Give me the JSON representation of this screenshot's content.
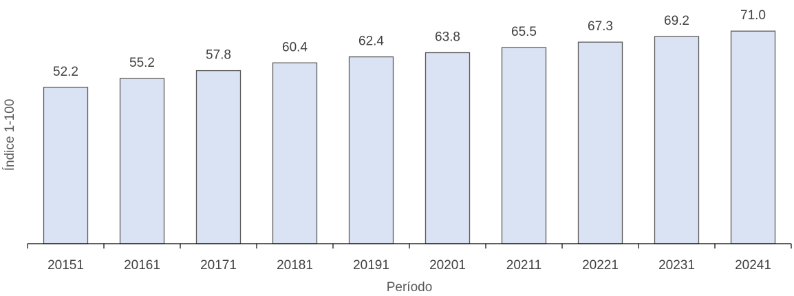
{
  "chart_data": {
    "type": "bar",
    "categories": [
      "20151",
      "20161",
      "20171",
      "20181",
      "20191",
      "20201",
      "20211",
      "20221",
      "20231",
      "20241"
    ],
    "values": [
      52.2,
      55.2,
      57.8,
      60.4,
      62.4,
      63.8,
      65.5,
      67.3,
      69.2,
      71.0
    ],
    "value_labels": [
      "52.2",
      "55.2",
      "57.8",
      "60.4",
      "62.4",
      "63.8",
      "65.5",
      "67.3",
      "69.2",
      "71.0"
    ],
    "title": "",
    "xlabel": "Período",
    "ylabel": "Índice 1-100",
    "ylim": [
      0,
      72.5
    ],
    "grid": false,
    "legend": "none",
    "colors": {
      "bar_fill": "#dae3f3",
      "bar_stroke": "#595959",
      "axis": "#000000"
    }
  }
}
